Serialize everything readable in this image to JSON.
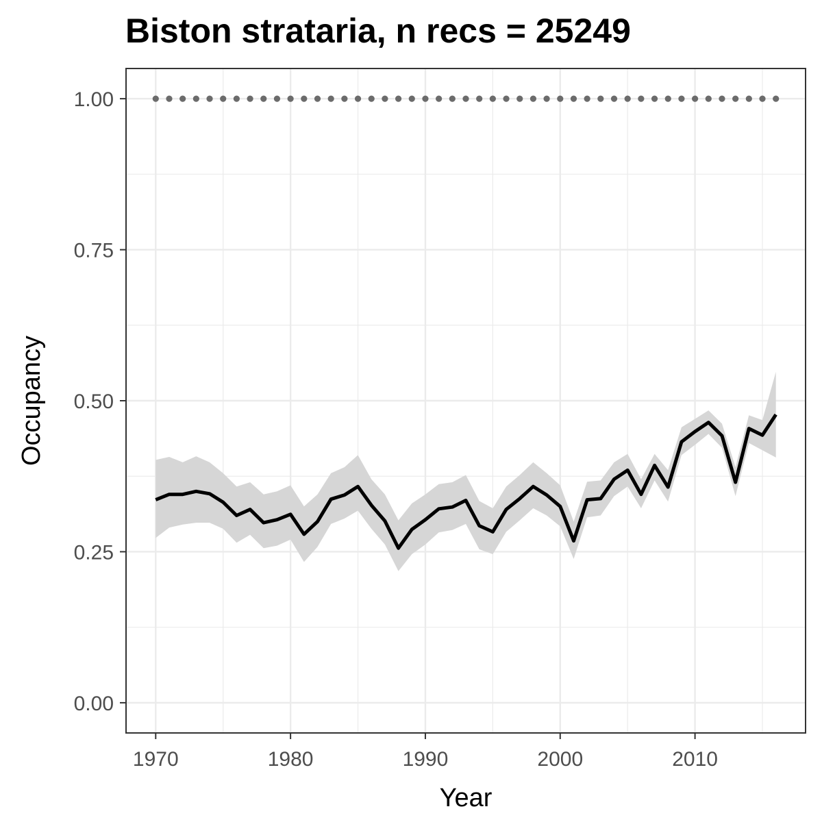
{
  "chart_data": {
    "type": "line",
    "title": "Biston strataria, n recs = 25249",
    "xlabel": "Year",
    "ylabel": "Occupancy",
    "xlim": [
      1967.8,
      2018.2
    ],
    "ylim": [
      -0.05,
      1.05
    ],
    "x_ticks": [
      1970,
      1980,
      1990,
      2000,
      2010
    ],
    "x_tick_labels": [
      "1970",
      "1980",
      "1990",
      "2000",
      "2010"
    ],
    "y_ticks": [
      0,
      0.25,
      0.5,
      0.75,
      1.0
    ],
    "y_tick_labels": [
      "0.00",
      "0.25",
      "0.50",
      "0.75",
      "1.00"
    ],
    "grid": true,
    "colors": {
      "line": "#000000",
      "ribbon": "#d6d6d6",
      "dots": "#6b6b6b",
      "grid": "#ebebeb",
      "panel_border": "#333333"
    },
    "series": [
      {
        "kind": "line_with_ribbon",
        "x": [
          1970,
          1971,
          1972,
          1973,
          1974,
          1975,
          1976,
          1977,
          1978,
          1979,
          1980,
          1981,
          1982,
          1983,
          1984,
          1985,
          1986,
          1987,
          1988,
          1989,
          1990,
          1991,
          1992,
          1993,
          1994,
          1995,
          1996,
          1997,
          1998,
          1999,
          2000,
          2001,
          2002,
          2003,
          2004,
          2005,
          2006,
          2007,
          2008,
          2009,
          2010,
          2011,
          2012,
          2013,
          2014,
          2015,
          2016
        ],
        "y": [
          0.336,
          0.345,
          0.345,
          0.35,
          0.346,
          0.332,
          0.31,
          0.32,
          0.298,
          0.303,
          0.312,
          0.279,
          0.3,
          0.337,
          0.344,
          0.358,
          0.327,
          0.301,
          0.256,
          0.287,
          0.303,
          0.321,
          0.324,
          0.335,
          0.293,
          0.283,
          0.32,
          0.338,
          0.358,
          0.344,
          0.325,
          0.268,
          0.336,
          0.338,
          0.37,
          0.385,
          0.345,
          0.393,
          0.357,
          0.432,
          0.449,
          0.464,
          0.442,
          0.365,
          0.454,
          0.443,
          0.477
        ],
        "lower": [
          0.273,
          0.29,
          0.295,
          0.298,
          0.298,
          0.288,
          0.265,
          0.278,
          0.256,
          0.26,
          0.27,
          0.233,
          0.258,
          0.296,
          0.305,
          0.318,
          0.288,
          0.262,
          0.218,
          0.246,
          0.262,
          0.282,
          0.286,
          0.296,
          0.254,
          0.246,
          0.283,
          0.302,
          0.322,
          0.31,
          0.292,
          0.238,
          0.307,
          0.31,
          0.342,
          0.358,
          0.322,
          0.368,
          0.333,
          0.41,
          0.427,
          0.445,
          0.422,
          0.342,
          0.43,
          0.418,
          0.406
        ],
        "upper": [
          0.402,
          0.407,
          0.398,
          0.408,
          0.398,
          0.38,
          0.358,
          0.365,
          0.345,
          0.35,
          0.36,
          0.325,
          0.345,
          0.38,
          0.39,
          0.41,
          0.37,
          0.345,
          0.302,
          0.33,
          0.345,
          0.362,
          0.365,
          0.377,
          0.334,
          0.322,
          0.358,
          0.377,
          0.398,
          0.38,
          0.36,
          0.3,
          0.366,
          0.368,
          0.398,
          0.412,
          0.37,
          0.412,
          0.385,
          0.456,
          0.47,
          0.484,
          0.462,
          0.39,
          0.476,
          0.468,
          0.548
        ]
      },
      {
        "kind": "dotted",
        "x": [
          1970,
          1971,
          1972,
          1973,
          1974,
          1975,
          1976,
          1977,
          1978,
          1979,
          1980,
          1981,
          1982,
          1983,
          1984,
          1985,
          1986,
          1987,
          1988,
          1989,
          1990,
          1991,
          1992,
          1993,
          1994,
          1995,
          1996,
          1997,
          1998,
          1999,
          2000,
          2001,
          2002,
          2003,
          2004,
          2005,
          2006,
          2007,
          2008,
          2009,
          2010,
          2011,
          2012,
          2013,
          2014,
          2015,
          2016
        ],
        "y": [
          1,
          1,
          1,
          1,
          1,
          1,
          1,
          1,
          1,
          1,
          1,
          1,
          1,
          1,
          1,
          1,
          1,
          1,
          1,
          1,
          1,
          1,
          1,
          1,
          1,
          1,
          1,
          1,
          1,
          1,
          1,
          1,
          1,
          1,
          1,
          1,
          1,
          1,
          1,
          1,
          1,
          1,
          1,
          1,
          1,
          1,
          1
        ]
      }
    ]
  }
}
